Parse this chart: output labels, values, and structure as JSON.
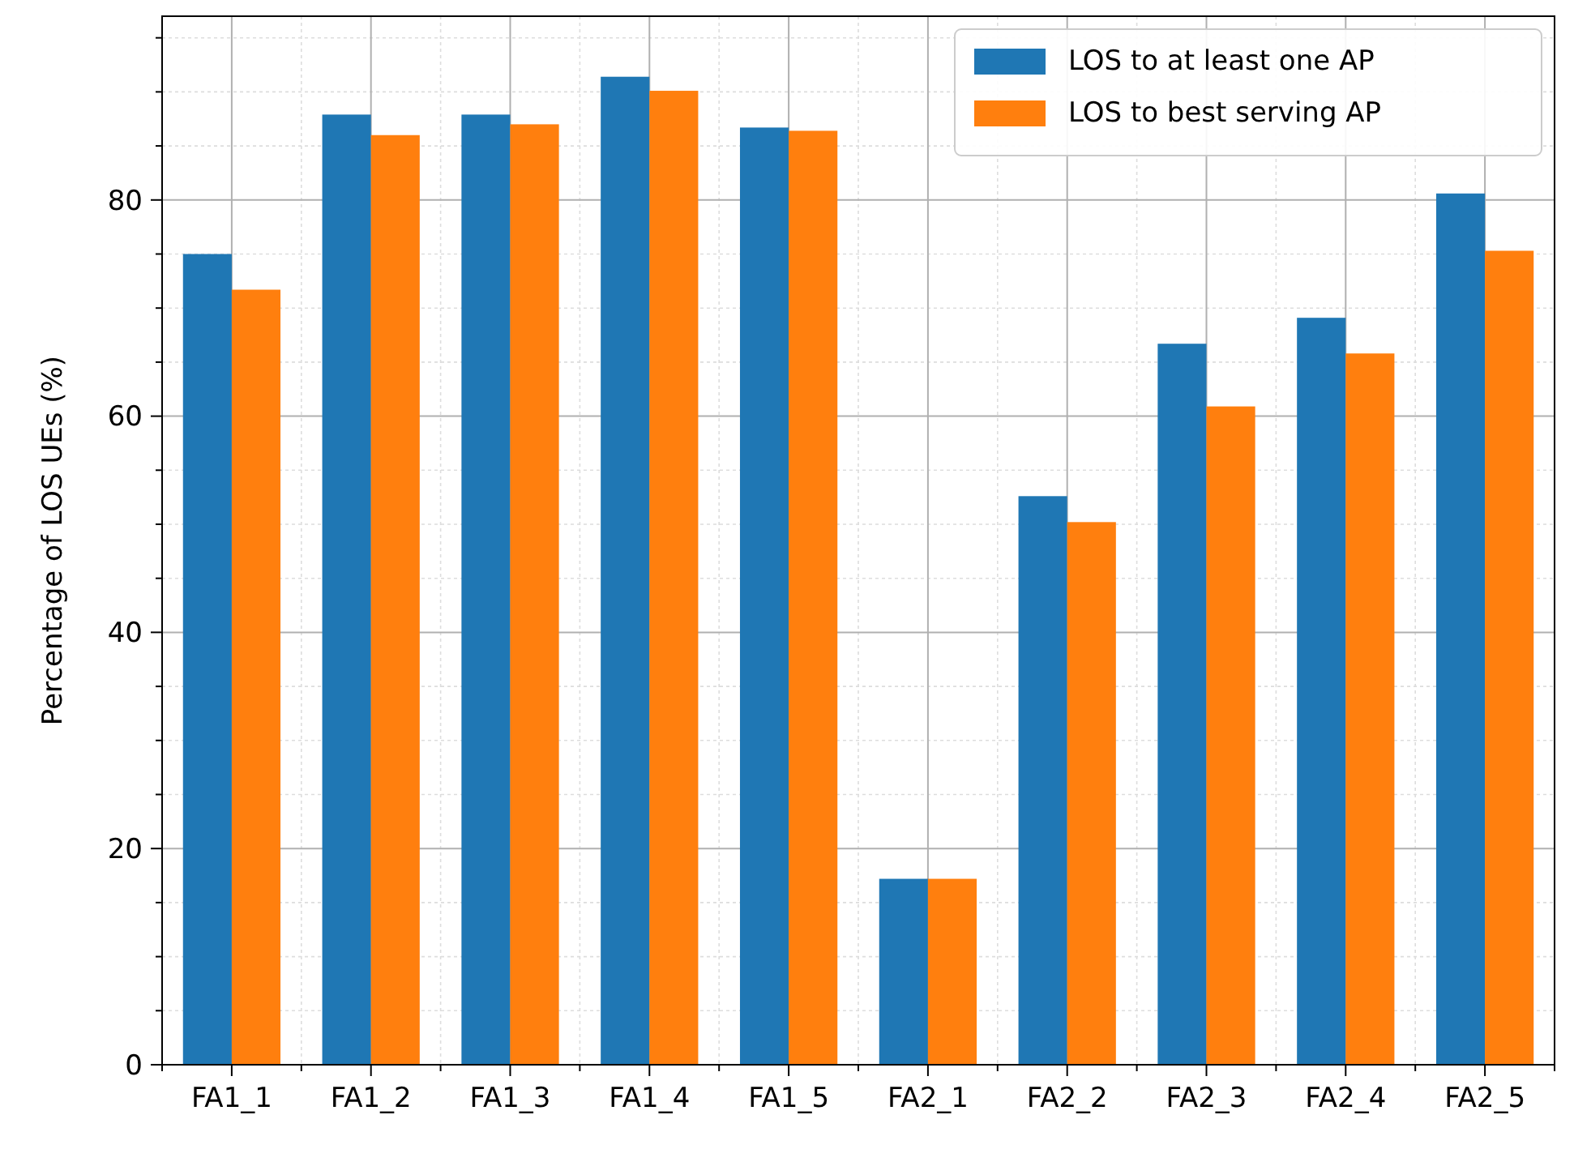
{
  "chart_data": {
    "type": "bar",
    "ylabel": "Percentage of LOS UEs (%)",
    "categories": [
      "FA1_1",
      "FA1_2",
      "FA1_3",
      "FA1_4",
      "FA1_5",
      "FA2_1",
      "FA2_2",
      "FA2_3",
      "FA2_4",
      "FA2_5"
    ],
    "series": [
      {
        "name": "LOS to at least one AP",
        "color": "#1f77b4",
        "values": [
          75.0,
          87.9,
          87.9,
          91.4,
          86.7,
          17.2,
          52.6,
          66.7,
          69.1,
          80.6
        ]
      },
      {
        "name": "LOS to best serving AP",
        "color": "#ff7f0e",
        "values": [
          71.7,
          86.0,
          87.0,
          90.1,
          86.4,
          17.2,
          50.2,
          60.9,
          65.8,
          75.3
        ]
      }
    ],
    "ylim": [
      0,
      97
    ],
    "yticks": [
      0,
      20,
      40,
      60,
      80
    ],
    "grid": true,
    "legend": "top right"
  }
}
